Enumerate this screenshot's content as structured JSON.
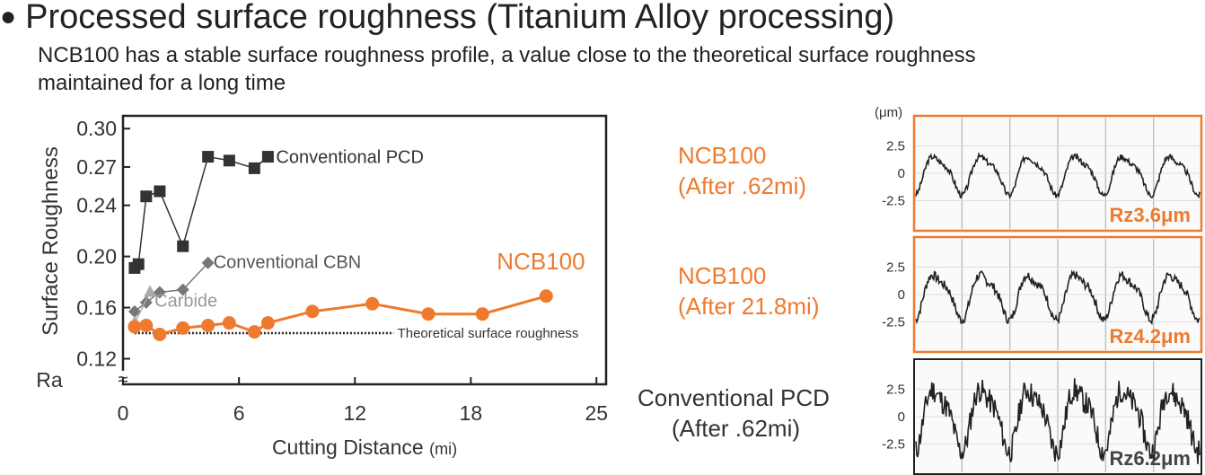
{
  "page": {
    "bullet": "●",
    "title": "Processed surface roughness (Titanium Alloy processing)",
    "subtitle_line1": "NCB100 has a stable surface roughness profile, a value close to the theoretical surface roughness",
    "subtitle_line2": "maintained for a long time"
  },
  "chart_data": [
    {
      "type": "line",
      "ylabel": "Surface Roughness",
      "ylabel_unit": "Ra",
      "xlabel": "Cutting Distance",
      "xlabel_unit": "(mi)",
      "ylim": [
        0.1,
        0.31
      ],
      "xlim": [
        0,
        25
      ],
      "x_ticks": [
        "0",
        "6",
        "12",
        "18",
        "25"
      ],
      "x_tick_values": [
        0,
        6,
        12,
        18,
        24.5
      ],
      "y_ticks": [
        "0.30",
        "0.27",
        "0.24",
        "0.20",
        "0.16",
        "0.12"
      ],
      "y_tick_values": [
        0.3,
        0.27,
        0.24,
        0.2,
        0.16,
        0.12
      ],
      "axis_break_symbol": "≈",
      "grid": false,
      "legend": "inline-labels",
      "series": [
        {
          "name": "Conventional PCD",
          "marker": "square",
          "color": "#333333",
          "x": [
            0.6,
            0.8,
            1.2,
            1.9,
            3.1,
            4.4,
            5.5,
            6.8,
            7.5
          ],
          "y": [
            0.191,
            0.194,
            0.247,
            0.251,
            0.208,
            0.278,
            0.275,
            0.269,
            0.278
          ]
        },
        {
          "name": "Conventional CBN",
          "marker": "diamond",
          "color": "#777777",
          "x": [
            0.6,
            1.2,
            1.9,
            3.1,
            4.4
          ],
          "y": [
            0.157,
            0.164,
            0.172,
            0.174,
            0.195
          ]
        },
        {
          "name": "Carbide",
          "marker": "triangle",
          "color": "#aaaaaa",
          "x": [
            0.6,
            1.4
          ],
          "y": [
            0.148,
            0.172
          ]
        },
        {
          "name": "NCB100",
          "marker": "circle",
          "color": "#ee7a2e",
          "x": [
            0.6,
            1.2,
            1.9,
            3.1,
            4.4,
            5.5,
            6.8,
            7.5,
            9.8,
            12.9,
            15.8,
            18.6,
            21.9
          ],
          "y": [
            0.145,
            0.146,
            0.139,
            0.144,
            0.146,
            0.148,
            0.141,
            0.148,
            0.157,
            0.163,
            0.155,
            0.155,
            0.169
          ]
        }
      ],
      "annotations": [
        {
          "text": "Theoretical surface roughness",
          "y": 0.14,
          "style": "dotted-line"
        }
      ]
    },
    {
      "type": "line",
      "unit_label": "(μm)",
      "y_ticks": [
        "2.5",
        "0",
        "-2.5"
      ],
      "y_tick_values": [
        2.5,
        0,
        -2.5
      ],
      "ylim": [
        -5,
        5
      ],
      "grid": true,
      "series": [
        {
          "label_line1": "NCB100",
          "label_line2": "(After .62mi)",
          "rz_label": "Rz3.6μm",
          "frame_color": "#ee7a2e",
          "label_color": "#ee7a2e",
          "amplitude": 1.8,
          "cycles": 6,
          "noise": 0.18,
          "seed": 3
        },
        {
          "label_line1": "NCB100",
          "label_line2": "(After 21.8mi)",
          "rz_label": "Rz4.2μm",
          "frame_color": "#ee7a2e",
          "label_color": "#ee7a2e",
          "amplitude": 2.1,
          "cycles": 6,
          "noise": 0.28,
          "seed": 7
        },
        {
          "label_line1": "Conventional PCD",
          "label_line2": "(After .62mi)",
          "rz_label": "Rz6.2μm",
          "frame_color": "#222222",
          "label_color": "#333333",
          "amplitude": 2.9,
          "cycles": 6,
          "noise": 0.75,
          "seed": 11
        }
      ]
    }
  ]
}
